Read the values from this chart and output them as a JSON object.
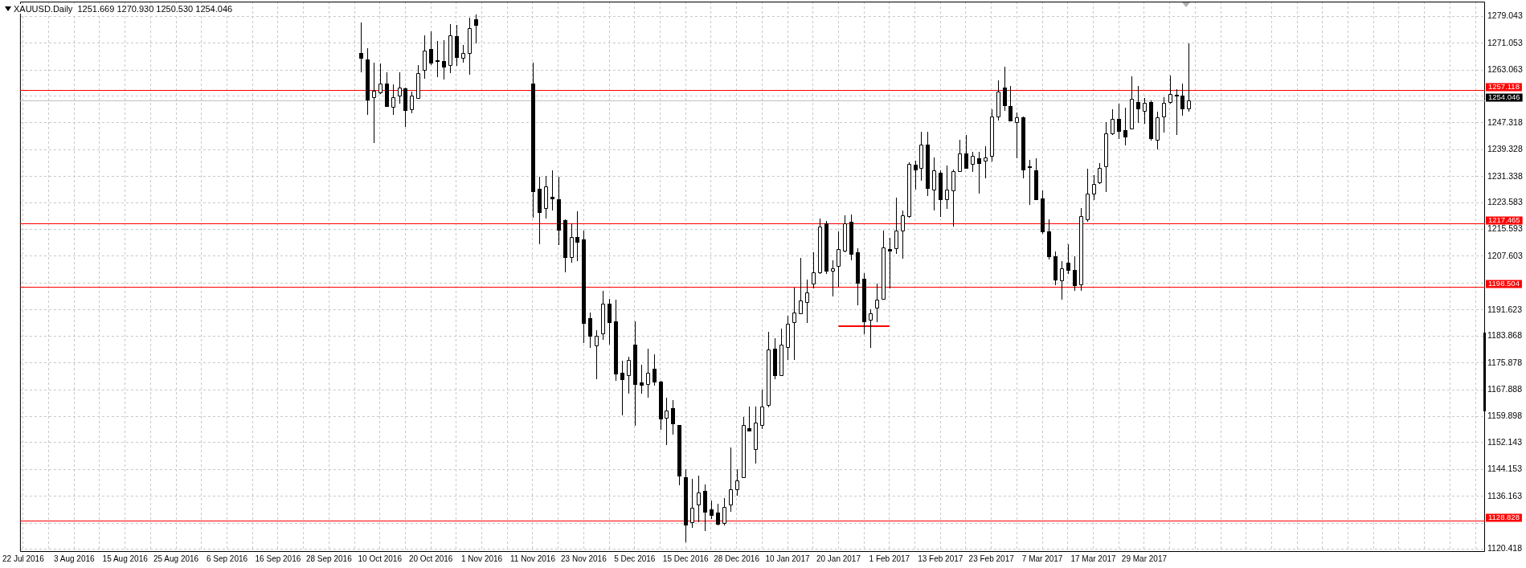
{
  "chart_data": {
    "type": "candlestick",
    "title": "XAUUSD.Daily  1251.669 1270.930 1250.530 1254.046",
    "categories": [
      "22 Jul 2016",
      null,
      null,
      null,
      null,
      null,
      null,
      null,
      "3 Aug 2016",
      null,
      null,
      null,
      null,
      null,
      null,
      null,
      "15 Aug 2016",
      null,
      null,
      null,
      null,
      null,
      null,
      null,
      "25 Aug 2016",
      null,
      null,
      null,
      null,
      null,
      null,
      null,
      "6 Sep 2016",
      null,
      null,
      null,
      null,
      null,
      null,
      null,
      "16 Sep 2016",
      null,
      null,
      null,
      null,
      null,
      null,
      null,
      "28 Sep 2016",
      null,
      null,
      null,
      null,
      null,
      null,
      null,
      "10 Oct 2016",
      null,
      null,
      null,
      null,
      null,
      null,
      null,
      "20 Oct 2016",
      null,
      null,
      null,
      null,
      null,
      null,
      null,
      "1 Nov 2016",
      null,
      null,
      null,
      null,
      null,
      null,
      null,
      "11 Nov 2016",
      null,
      null,
      null,
      null,
      null,
      null,
      null,
      "23 Nov 2016",
      null,
      null,
      null,
      null,
      null,
      null,
      null,
      "5 Dec 2016",
      null,
      null,
      null,
      null,
      null,
      null,
      null,
      "15 Dec 2016",
      null,
      null,
      null,
      null,
      null,
      null,
      null,
      "28 Dec 2016",
      null,
      null,
      null,
      null,
      null,
      null,
      null,
      "10 Jan 2017",
      null,
      null,
      null,
      null,
      null,
      null,
      null,
      "20 Jan 2017",
      null,
      null,
      null,
      null,
      null,
      null,
      null,
      "1 Feb 2017",
      null,
      null,
      null,
      null,
      null,
      null,
      null,
      "13 Feb 2017",
      null,
      null,
      null,
      null,
      null,
      null,
      null,
      "23 Feb 2017",
      null,
      null,
      null,
      null,
      null,
      null,
      null,
      "7 Mar 2017",
      null,
      null,
      null,
      null,
      null,
      null,
      null,
      "17 Mar 2017",
      null,
      null,
      null,
      null,
      null,
      null,
      null,
      "29 Mar 2017",
      null,
      null,
      null,
      null,
      null,
      null,
      null,
      null,
      null,
      null,
      null,
      null,
      null,
      null,
      null,
      null,
      null,
      null,
      null,
      null,
      null,
      null,
      null,
      null,
      null,
      null,
      null,
      null,
      null,
      null,
      null,
      null,
      null,
      null,
      null,
      null,
      null,
      null,
      null,
      null,
      null,
      null,
      null,
      null,
      null,
      null,
      null,
      null,
      null,
      null,
      null,
      null,
      null
    ],
    "ohlc": [
      null,
      null,
      null,
      null,
      null,
      null,
      null,
      null,
      null,
      null,
      null,
      null,
      null,
      null,
      null,
      null,
      null,
      null,
      null,
      null,
      null,
      null,
      null,
      null,
      null,
      null,
      null,
      null,
      null,
      null,
      null,
      null,
      null,
      null,
      null,
      null,
      null,
      null,
      null,
      null,
      null,
      null,
      null,
      null,
      null,
      null,
      null,
      null,
      null,
      null,
      null,
      null,
      null,
      [
        1268.2,
        1277.2,
        1262.3,
        1266.6
      ],
      [
        1266.3,
        1269.5,
        1249.7,
        1254.2
      ],
      [
        1255.0,
        1265.3,
        1241.3,
        1256.9
      ],
      [
        1256.4,
        1264.9,
        1256.0,
        1258.9
      ],
      [
        1259.1,
        1262.3,
        1252.0,
        1252.2
      ],
      [
        1252.0,
        1258.7,
        1249.7,
        1255.0
      ],
      [
        1255.5,
        1262.3,
        1253.1,
        1257.8
      ],
      [
        1257.6,
        1257.8,
        1246.1,
        1251.2
      ],
      [
        1251.4,
        1256.6,
        1250.1,
        1255.5
      ],
      [
        1254.7,
        1264.6,
        1254.4,
        1262.2
      ],
      [
        1263.1,
        1273.3,
        1260.4,
        1268.9
      ],
      [
        1269.3,
        1274.6,
        1264.6,
        1265.3
      ],
      [
        1266.0,
        1271.8,
        1260.9,
        1265.9
      ],
      [
        1265.6,
        1272.0,
        1260.2,
        1264.1
      ],
      [
        1264.6,
        1276.7,
        1262.0,
        1273.4
      ],
      [
        1273.1,
        1276.4,
        1264.2,
        1266.9
      ],
      [
        1266.6,
        1270.4,
        1265.3,
        1268.0
      ],
      [
        1268.2,
        1278.5,
        1261.7,
        1275.5
      ],
      [
        1278.1,
        1279.6,
        1271.0,
        1276.5
      ],
      null,
      null,
      null,
      null,
      null,
      null,
      null,
      null,
      [
        1259.1,
        1265.3,
        1219.1,
        1227.0
      ],
      [
        1227.6,
        1231.3,
        1211.3,
        1220.8
      ],
      [
        1221.9,
        1231.5,
        1218.8,
        1228.4
      ],
      [
        1225.4,
        1233.2,
        1221.3,
        1224.8
      ],
      [
        1224.5,
        1231.3,
        1211.0,
        1215.6
      ],
      [
        1218.4,
        1218.6,
        1202.9,
        1207.3
      ],
      [
        1207.3,
        1217.5,
        1205.6,
        1213.4
      ],
      [
        1213.4,
        1221.1,
        1206.1,
        1211.8
      ],
      [
        1212.6,
        1215.3,
        1181.7,
        1187.7
      ],
      [
        1189.3,
        1190.9,
        1180.3,
        1183.9
      ],
      [
        1181.1,
        1185.7,
        1170.9,
        1183.9
      ],
      [
        1184.6,
        1197.4,
        1182.8,
        1193.4
      ],
      [
        1193.4,
        1195.0,
        1181.2,
        1187.9
      ],
      [
        1188.3,
        1194.7,
        1170.5,
        1172.7
      ],
      [
        1173.0,
        1176.5,
        1160.3,
        1171.1
      ],
      [
        1172.2,
        1177.6,
        1166.7,
        1176.8
      ],
      [
        1181.2,
        1188.2,
        1157.1,
        1169.6
      ],
      [
        1170.0,
        1175.4,
        1166.7,
        1169.3
      ],
      [
        1169.6,
        1180.1,
        1165.6,
        1173.0
      ],
      [
        1174.1,
        1178.5,
        1169.0,
        1170.3
      ],
      [
        1170.3,
        1170.5,
        1156.0,
        1159.2
      ],
      [
        1159.5,
        1165.6,
        1151.3,
        1161.6
      ],
      [
        1162.5,
        1164.9,
        1154.6,
        1157.8
      ],
      [
        1157.3,
        1157.5,
        1139.4,
        1142.4
      ],
      [
        1141.8,
        1144.3,
        1122.4,
        1127.8
      ],
      [
        1128.5,
        1141.3,
        1126.7,
        1132.7
      ],
      [
        1133.7,
        1142.3,
        1128.5,
        1137.2
      ],
      [
        1137.8,
        1139.6,
        1125.8,
        1131.6
      ],
      [
        1132.3,
        1135.0,
        1129.4,
        1130.7
      ],
      [
        1131.3,
        1134.0,
        1127.5,
        1128.0
      ],
      [
        1128.3,
        1135.6,
        1127.5,
        1133.1
      ],
      [
        1133.6,
        1150.6,
        1131.5,
        1138.3
      ],
      [
        1138.3,
        1144.3,
        1136.3,
        1141.0
      ],
      [
        1141.9,
        1159.8,
        1141.6,
        1157.5
      ],
      [
        1156.5,
        1163.0,
        1155.4,
        1155.7
      ],
      [
        1150.2,
        1162.9,
        1145.9,
        1158.2
      ],
      [
        1157.5,
        1167.9,
        1156.2,
        1162.9
      ],
      [
        1163.3,
        1185.2,
        1162.7,
        1179.8
      ],
      [
        1180.0,
        1183.3,
        1170.9,
        1172.2
      ],
      [
        1172.2,
        1186.0,
        1171.9,
        1181.4
      ],
      [
        1180.6,
        1189.8,
        1176.8,
        1187.5
      ],
      [
        1187.9,
        1198.3,
        1176.8,
        1190.9
      ],
      [
        1190.7,
        1207.0,
        1190.4,
        1194.5
      ],
      [
        1193.9,
        1200.7,
        1187.7,
        1196.9
      ],
      [
        1199.4,
        1208.8,
        1198.0,
        1202.9
      ],
      [
        1202.9,
        1218.8,
        1202.3,
        1216.4
      ],
      [
        1217.5,
        1218.1,
        1202.3,
        1203.2
      ],
      [
        1203.2,
        1206.4,
        1195.6,
        1203.9
      ],
      [
        1204.7,
        1215.0,
        1198.5,
        1209.7
      ],
      [
        1209.2,
        1219.9,
        1208.8,
        1217.5
      ],
      [
        1217.9,
        1220.1,
        1206.3,
        1208.3
      ],
      [
        1208.8,
        1209.9,
        1193.1,
        1199.8
      ],
      [
        1200.9,
        1202.5,
        1184.4,
        1188.2
      ],
      [
        1188.8,
        1191.7,
        1180.4,
        1190.6
      ],
      [
        1192.3,
        1199.4,
        1188.0,
        1194.7
      ],
      [
        1194.9,
        1215.3,
        1194.9,
        1210.2
      ],
      [
        1209.7,
        1213.2,
        1198.0,
        1209.3
      ],
      [
        1209.9,
        1225.1,
        1208.3,
        1215.3
      ],
      [
        1215.3,
        1221.3,
        1206.9,
        1219.9
      ],
      [
        1219.5,
        1235.6,
        1219.1,
        1235.1
      ],
      [
        1234.9,
        1236.0,
        1227.5,
        1233.5
      ],
      [
        1233.8,
        1244.6,
        1230.0,
        1240.8
      ],
      [
        1240.8,
        1244.6,
        1225.6,
        1228.0
      ],
      [
        1227.5,
        1237.0,
        1221.3,
        1233.2
      ],
      [
        1232.5,
        1233.2,
        1219.4,
        1224.6
      ],
      [
        1224.6,
        1234.5,
        1221.6,
        1227.5
      ],
      [
        1227.3,
        1233.5,
        1216.4,
        1233.0
      ],
      [
        1233.0,
        1242.3,
        1232.7,
        1238.3
      ],
      [
        1238.3,
        1243.8,
        1233.6,
        1233.8
      ],
      [
        1235.2,
        1238.7,
        1232.7,
        1237.4
      ],
      [
        1236.8,
        1238.7,
        1226.2,
        1235.4
      ],
      [
        1236.0,
        1240.3,
        1230.9,
        1237.0
      ],
      [
        1237.4,
        1251.4,
        1235.7,
        1249.2
      ],
      [
        1249.2,
        1260.0,
        1247.9,
        1256.6
      ],
      [
        1257.7,
        1264.0,
        1250.9,
        1252.6
      ],
      [
        1252.2,
        1258.4,
        1247.7,
        1248.1
      ],
      [
        1247.6,
        1250.3,
        1236.8,
        1249.0
      ],
      [
        1249.0,
        1249.2,
        1230.9,
        1233.5
      ],
      [
        1234.3,
        1236.3,
        1222.9,
        1234.1
      ],
      [
        1233.2,
        1236.7,
        1224.6,
        1224.6
      ],
      [
        1224.8,
        1227.1,
        1214.3,
        1215.0
      ],
      [
        1215.1,
        1218.6,
        1206.7,
        1207.7
      ],
      [
        1207.5,
        1209.1,
        1199.1,
        1200.7
      ],
      [
        1200.5,
        1206.1,
        1194.7,
        1203.9
      ],
      [
        1205.6,
        1211.2,
        1202.3,
        1203.6
      ],
      [
        1203.6,
        1207.7,
        1197.2,
        1198.9
      ],
      [
        1199.3,
        1221.9,
        1197.4,
        1219.5
      ],
      [
        1218.6,
        1233.6,
        1217.9,
        1226.2
      ],
      [
        1226.2,
        1231.8,
        1224.3,
        1229.1
      ],
      [
        1229.5,
        1235.4,
        1229.2,
        1233.8
      ],
      [
        1234.3,
        1247.6,
        1226.7,
        1244.1
      ],
      [
        1244.1,
        1251.4,
        1243.8,
        1248.4
      ],
      [
        1248.4,
        1253.1,
        1242.5,
        1244.9
      ],
      [
        1245.2,
        1251.9,
        1240.6,
        1243.2
      ],
      [
        1245.7,
        1261.1,
        1245.7,
        1254.4
      ],
      [
        1253.5,
        1258.4,
        1247.4,
        1251.6
      ],
      [
        1250.8,
        1254.6,
        1247.0,
        1253.3
      ],
      [
        1253.6,
        1253.9,
        1242.1,
        1242.7
      ],
      [
        1242.3,
        1250.6,
        1239.4,
        1249.0
      ],
      [
        1249.2,
        1255.0,
        1244.4,
        1253.3
      ],
      [
        1253.5,
        1261.5,
        1253.1,
        1256.0
      ],
      [
        1255.7,
        1257.4,
        1243.6,
        1255.4
      ],
      [
        1255.5,
        1259.0,
        1249.5,
        1251.6
      ],
      [
        1251.669,
        1270.93,
        1250.53,
        1254.046
      ],
      null,
      null,
      null,
      null,
      null,
      null,
      null,
      null,
      null,
      null,
      null,
      null,
      null,
      null,
      null,
      null,
      null,
      null,
      null,
      null,
      null,
      null,
      null,
      null,
      null,
      null,
      null,
      null,
      null,
      null,
      null,
      null,
      null,
      null,
      null,
      null,
      null,
      null,
      null,
      null,
      null,
      null,
      null,
      null,
      null,
      null
    ],
    "series": [
      {
        "type": "line",
        "color": "#ff0000",
        "values": [
          null,
          null,
          null,
          null,
          null,
          null,
          null,
          null,
          null,
          null,
          null,
          null,
          null,
          null,
          null,
          null,
          null,
          null,
          null,
          null,
          null,
          null,
          null,
          null,
          null,
          null,
          null,
          null,
          null,
          null,
          null,
          null,
          null,
          null,
          null,
          null,
          null,
          null,
          null,
          null,
          null,
          null,
          null,
          null,
          null,
          null,
          null,
          null,
          null,
          null,
          null,
          null,
          null,
          null,
          null,
          null,
          null,
          null,
          null,
          null,
          null,
          null,
          null,
          null,
          null,
          null,
          null,
          null,
          null,
          null,
          null,
          null,
          null,
          null,
          null,
          null,
          null,
          null,
          null,
          null,
          null,
          null,
          null,
          null,
          null,
          null,
          null,
          null,
          null,
          null,
          null,
          null,
          null,
          null,
          null,
          null,
          null,
          null,
          null,
          null,
          null,
          null,
          null,
          null,
          null,
          null,
          null,
          null,
          null,
          null,
          null,
          null,
          null,
          null,
          null,
          null,
          null,
          null,
          null,
          null,
          null,
          null,
          null,
          null,
          null,
          null,
          null,
          null,
          1186.8,
          1186.8,
          1186.8,
          1186.8,
          1186.8,
          1186.8,
          1186.8,
          1186.8,
          1186.8,
          null,
          null,
          null,
          null,
          null,
          null,
          null,
          null,
          null,
          null,
          null,
          null,
          null,
          null,
          null,
          null,
          null,
          null,
          null,
          null,
          null,
          null,
          null,
          null,
          null,
          null,
          null,
          null,
          null,
          null,
          null,
          null,
          null,
          null,
          null,
          null,
          null,
          null,
          null,
          null,
          null,
          null,
          null,
          null,
          null,
          null,
          null,
          null,
          null,
          null,
          null,
          null,
          null,
          null,
          null,
          null,
          null,
          null,
          null,
          null,
          null,
          null,
          null,
          null,
          null,
          null,
          null,
          null,
          null,
          null,
          null,
          null,
          null,
          null,
          null,
          null,
          null,
          null,
          null,
          null,
          null,
          null,
          null,
          null,
          null,
          null,
          null,
          null,
          null,
          null,
          null,
          null,
          null
        ]
      }
    ],
    "ylim": [
      1119.6,
      1283.4
    ],
    "yticks": [
      1279.043,
      1271.053,
      1263.063,
      {
        "value": 1255.2,
        "label": null
      },
      1247.318,
      1239.328,
      1231.338,
      1223.583,
      1215.593,
      1207.603,
      {
        "value": 1199.6,
        "label": null
      },
      1191.623,
      1183.868,
      1175.878,
      1167.888,
      1159.898,
      1152.143,
      1144.153,
      1136.163,
      {
        "value": 1128.2,
        "label": null
      },
      1120.418
    ],
    "ref_lines": [
      {
        "axis": "y",
        "value": 1257.118,
        "label": "1257.118",
        "color": "#ff0000"
      },
      {
        "axis": "y",
        "value": 1254.046,
        "label": "1254.046",
        "color": "#c0c0c0"
      },
      {
        "axis": "y",
        "value": 1217.465,
        "label": "1217.465",
        "color": "#ff0000"
      },
      {
        "axis": "y",
        "value": 1198.504,
        "label": "1198.504",
        "color": "#ff0000"
      },
      {
        "axis": "y",
        "value": 1128.828,
        "label": "1128.828",
        "color": "#ff0000"
      }
    ],
    "grid": true,
    "legend": false
  }
}
